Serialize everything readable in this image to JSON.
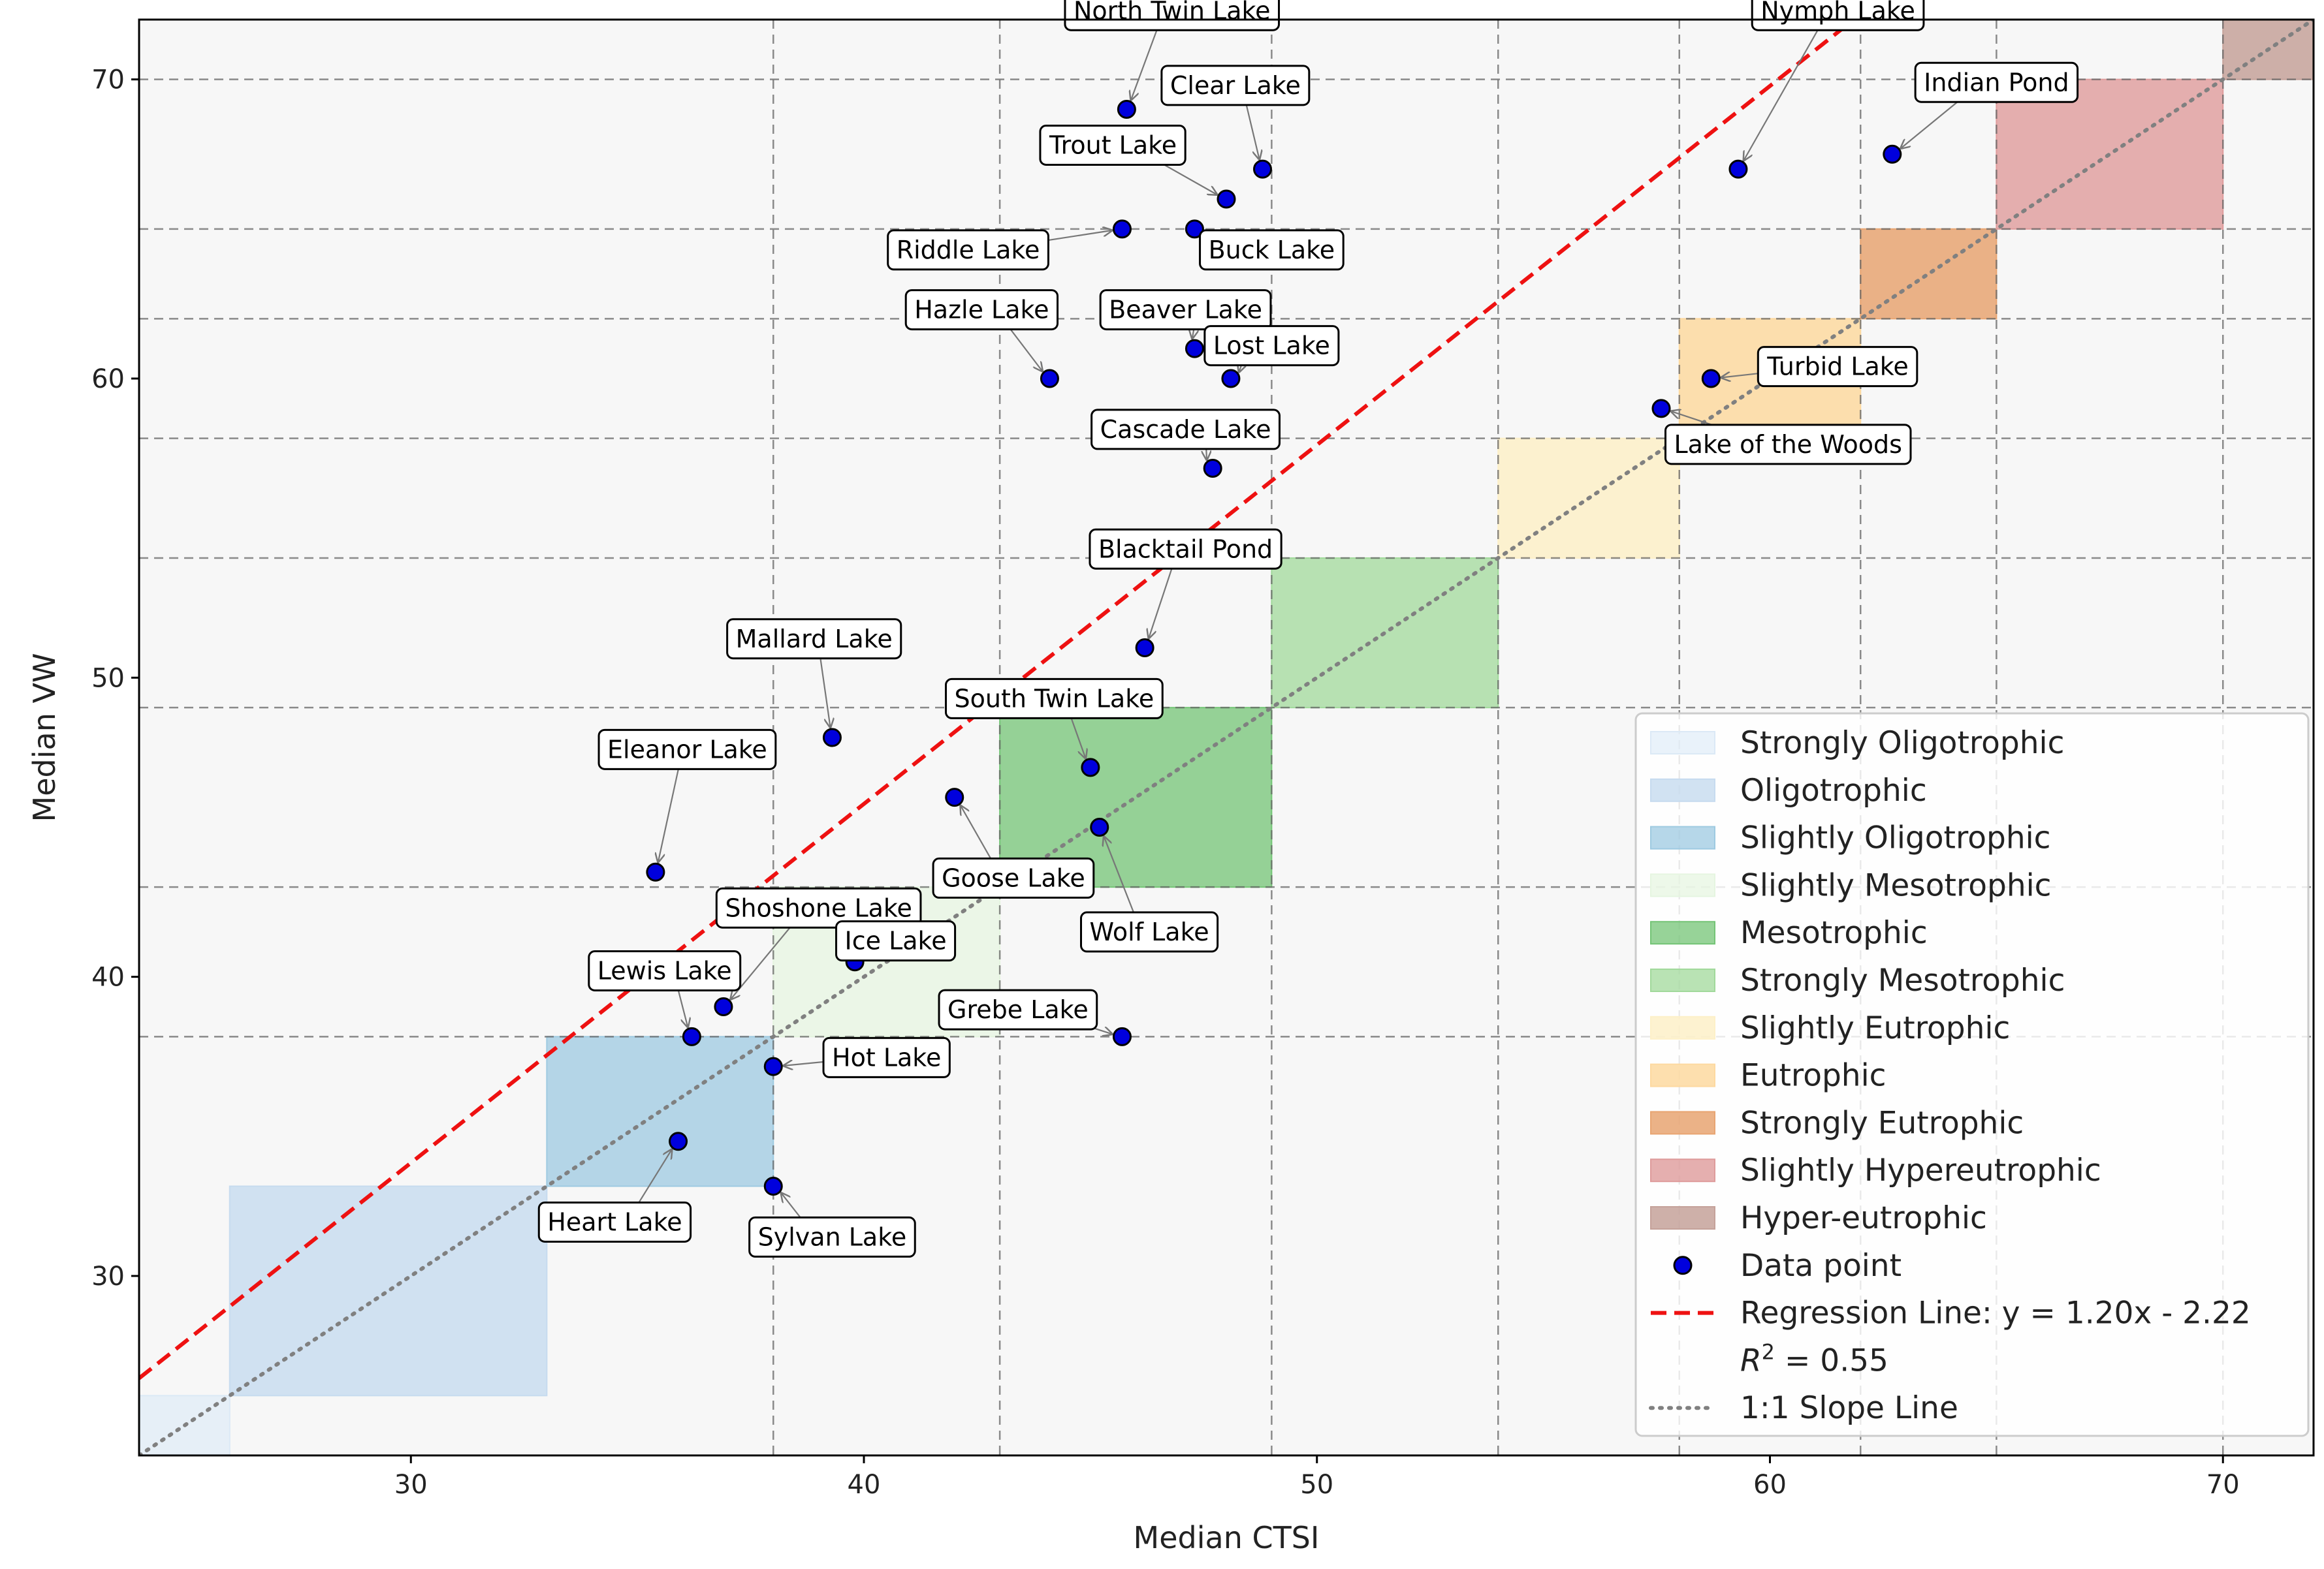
{
  "chart_data": {
    "type": "scatter",
    "xlabel": "Median CTSI",
    "ylabel": "Median VW",
    "xlim": [
      24,
      72
    ],
    "ylim": [
      24,
      72
    ],
    "xticks": [
      30,
      40,
      50,
      60,
      70
    ],
    "yticks": [
      30,
      40,
      50,
      60,
      70
    ],
    "grid": {
      "x": [
        38,
        43,
        49,
        54,
        58,
        62,
        65,
        70
      ],
      "y": [
        38,
        43,
        49,
        54,
        58,
        62,
        65,
        70
      ]
    },
    "zones": [
      {
        "name": "Strongly Oligotrophic",
        "range": [
          24,
          26
        ],
        "color": "#dbe9f6",
        "opacity": 0.6
      },
      {
        "name": "Oligotrophic",
        "range": [
          26,
          33
        ],
        "color": "#c6dbef",
        "opacity": 0.8
      },
      {
        "name": "Slightly Oligotrophic",
        "range": [
          33,
          38
        ],
        "color": "#9ecae1",
        "opacity": 0.75
      },
      {
        "name": "Slightly Mesotrophic",
        "range": [
          38,
          43
        ],
        "color": "#e5f5e0",
        "opacity": 0.7
      },
      {
        "name": "Mesotrophic",
        "range": [
          43,
          49
        ],
        "color": "#74c476",
        "opacity": 0.75
      },
      {
        "name": "Strongly Mesotrophic",
        "range": [
          49,
          54
        ],
        "color": "#a1d99b",
        "opacity": 0.75
      },
      {
        "name": "Slightly Eutrophic",
        "range": [
          54,
          58
        ],
        "color": "#fdf0c8",
        "opacity": 0.85
      },
      {
        "name": "Eutrophic",
        "range": [
          58,
          62
        ],
        "color": "#fdd9a0",
        "opacity": 0.85
      },
      {
        "name": "Strongly Eutrophic",
        "range": [
          62,
          65
        ],
        "color": "#e8a572",
        "opacity": 0.85
      },
      {
        "name": "Slightly Hypereutrophic",
        "range": [
          65,
          70
        ],
        "color": "#de9b9b",
        "opacity": 0.8
      },
      {
        "name": "Hyper-eutrophic",
        "range": [
          70,
          72
        ],
        "color": "#c5a29a",
        "opacity": 0.85
      }
    ],
    "points": [
      {
        "label": "North Twin Lake",
        "x": 45.8,
        "y": 69,
        "lx": 46.8,
        "ly": 72.3
      },
      {
        "label": "Clear Lake",
        "x": 48.8,
        "y": 67,
        "lx": 48.2,
        "ly": 69.8
      },
      {
        "label": "Trout Lake",
        "x": 48.0,
        "y": 66,
        "lx": 45.5,
        "ly": 67.8
      },
      {
        "label": "Riddle Lake",
        "x": 45.7,
        "y": 65,
        "lx": 42.3,
        "ly": 64.3
      },
      {
        "label": "Buck Lake",
        "x": 47.3,
        "y": 65,
        "lx": 49.0,
        "ly": 64.3
      },
      {
        "label": "Hazle Lake",
        "x": 44.1,
        "y": 60,
        "lx": 42.6,
        "ly": 62.3
      },
      {
        "label": "Beaver Lake",
        "x": 47.3,
        "y": 61,
        "lx": 47.1,
        "ly": 62.3
      },
      {
        "label": "Lost Lake",
        "x": 48.1,
        "y": 60,
        "lx": 49.0,
        "ly": 61.1
      },
      {
        "label": "Cascade Lake",
        "x": 47.7,
        "y": 57,
        "lx": 47.1,
        "ly": 58.3
      },
      {
        "label": "Blacktail Pond",
        "x": 46.2,
        "y": 51,
        "lx": 47.1,
        "ly": 54.3
      },
      {
        "label": "Mallard Lake",
        "x": 39.3,
        "y": 48,
        "lx": 38.9,
        "ly": 51.3
      },
      {
        "label": "South Twin Lake",
        "x": 45.0,
        "y": 47,
        "lx": 44.2,
        "ly": 49.3
      },
      {
        "label": "Eleanor Lake",
        "x": 35.4,
        "y": 43.5,
        "lx": 36.1,
        "ly": 47.6
      },
      {
        "label": "Goose Lake",
        "x": 42.0,
        "y": 46,
        "lx": 43.3,
        "ly": 43.3
      },
      {
        "label": "Wolf Lake",
        "x": 45.2,
        "y": 45,
        "lx": 46.3,
        "ly": 41.5
      },
      {
        "label": "Shoshone Lake",
        "x": 36.9,
        "y": 39,
        "lx": 39.0,
        "ly": 42.3
      },
      {
        "label": "Ice Lake",
        "x": 39.8,
        "y": 40.5,
        "lx": 40.7,
        "ly": 41.2
      },
      {
        "label": "Lewis Lake",
        "x": 36.2,
        "y": 38,
        "lx": 35.6,
        "ly": 40.2
      },
      {
        "label": "Grebe Lake",
        "x": 45.7,
        "y": 38,
        "lx": 43.4,
        "ly": 38.9
      },
      {
        "label": "Hot Lake",
        "x": 38.0,
        "y": 37,
        "lx": 40.5,
        "ly": 37.3
      },
      {
        "label": "Heart Lake",
        "x": 35.9,
        "y": 34.5,
        "lx": 34.5,
        "ly": 31.8
      },
      {
        "label": "Sylvan Lake",
        "x": 38.0,
        "y": 33,
        "lx": 39.3,
        "ly": 31.3
      },
      {
        "label": "Nymph Lake",
        "x": 59.3,
        "y": 67,
        "lx": 61.5,
        "ly": 72.3
      },
      {
        "label": "Indian Pond",
        "x": 62.7,
        "y": 67.5,
        "lx": 65.0,
        "ly": 69.9
      },
      {
        "label": "Turbid Lake",
        "x": 58.7,
        "y": 60,
        "lx": 61.5,
        "ly": 60.4
      },
      {
        "label": "Lake of the Woods",
        "x": 57.6,
        "y": 59,
        "lx": 60.4,
        "ly": 57.8
      }
    ],
    "regression": {
      "slope": 1.2,
      "intercept": -2.22,
      "color": "#ee1111"
    },
    "legend": {
      "position": "lower-right",
      "data_point": "Data point",
      "regression": "Regression Line: y = 1.20x - 2.22",
      "r2_value": " = 0.55",
      "one_to_one": "1:1 Slope Line"
    },
    "colors": {
      "point": "#0000dd",
      "background": "#f7f7f7",
      "grid": "#666666",
      "one_to_one": "#808080"
    }
  }
}
